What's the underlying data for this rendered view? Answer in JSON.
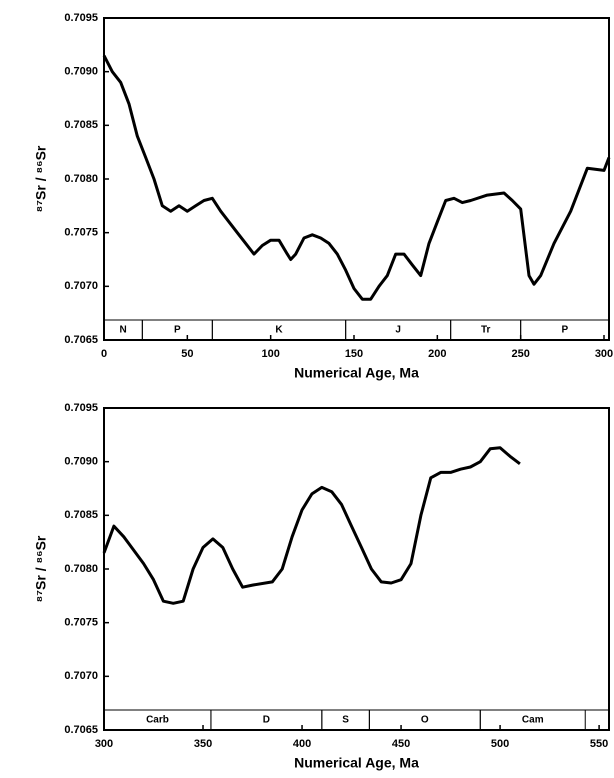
{
  "chart_data": [
    {
      "type": "line",
      "xlabel": "Numerical Age,  Ma",
      "ylabel": "⁸⁷Sr / ⁸⁶Sr",
      "xlim": [
        0,
        303
      ],
      "ylim": [
        0.7065,
        0.7095
      ],
      "xticks": [
        0,
        50,
        100,
        150,
        200,
        250,
        300
      ],
      "yticks": [
        0.7065,
        {
          "value": 0.707,
          "label": "0.7070"
        },
        0.7075,
        {
          "value": 0.708,
          "label": "0.7080"
        },
        0.7085,
        {
          "value": 0.709,
          "label": "0.7090"
        },
        0.7095
      ],
      "color": "#000000",
      "x": [
        0,
        5,
        10,
        15,
        20,
        25,
        30,
        35,
        40,
        45,
        50,
        55,
        60,
        65,
        70,
        75,
        80,
        85,
        90,
        95,
        100,
        105,
        110,
        112,
        115,
        120,
        125,
        130,
        135,
        140,
        145,
        150,
        155,
        160,
        165,
        170,
        175,
        180,
        185,
        190,
        195,
        200,
        205,
        210,
        215,
        220,
        230,
        240,
        245,
        250,
        255,
        258,
        262,
        270,
        280,
        290,
        300,
        303
      ],
      "values": [
        0.70915,
        0.709,
        0.7089,
        0.7087,
        0.7084,
        0.7082,
        0.708,
        0.70775,
        0.7077,
        0.70775,
        0.7077,
        0.70775,
        0.7078,
        0.70782,
        0.7077,
        0.7076,
        0.7075,
        0.7074,
        0.7073,
        0.70738,
        0.70743,
        0.70743,
        0.7073,
        0.70725,
        0.7073,
        0.70745,
        0.70748,
        0.70745,
        0.7074,
        0.7073,
        0.70715,
        0.70698,
        0.70688,
        0.70688,
        0.707,
        0.7071,
        0.7073,
        0.7073,
        0.7072,
        0.7071,
        0.7074,
        0.7076,
        0.7078,
        0.70782,
        0.70778,
        0.7078,
        0.70785,
        0.70787,
        0.7078,
        0.70772,
        0.7071,
        0.70702,
        0.7071,
        0.7074,
        0.7077,
        0.7081,
        0.70808,
        0.7082
      ],
      "periods": [
        {
          "name": "N",
          "start": 0,
          "end": 23
        },
        {
          "name": "P",
          "start": 23,
          "end": 65
        },
        {
          "name": "K",
          "start": 65,
          "end": 145
        },
        {
          "name": "J",
          "start": 145,
          "end": 208
        },
        {
          "name": "Tr",
          "start": 208,
          "end": 250
        },
        {
          "name": "P",
          "start": 250,
          "end": 303
        }
      ]
    },
    {
      "type": "line",
      "xlabel": "Numerical Age,  Ma",
      "ylabel": "⁸⁷Sr / ⁸⁶Sr",
      "xlim": [
        300,
        555
      ],
      "ylim": [
        0.7065,
        0.7095
      ],
      "xticks": [
        300,
        350,
        400,
        450,
        500,
        550
      ],
      "yticks": [
        0.7065,
        {
          "value": 0.707,
          "label": "0.7070"
        },
        0.7075,
        {
          "value": 0.708,
          "label": "0.7080"
        },
        0.7085,
        {
          "value": 0.709,
          "label": "0.7090"
        },
        0.7095
      ],
      "color": "#000000",
      "x": [
        300,
        305,
        310,
        320,
        325,
        330,
        335,
        340,
        345,
        350,
        355,
        360,
        365,
        370,
        375,
        385,
        390,
        395,
        400,
        405,
        410,
        415,
        420,
        425,
        430,
        435,
        440,
        445,
        450,
        455,
        460,
        465,
        470,
        475,
        480,
        485,
        490,
        495,
        500,
        505,
        510
      ],
      "values": [
        0.70815,
        0.7084,
        0.7083,
        0.70805,
        0.7079,
        0.7077,
        0.70768,
        0.7077,
        0.708,
        0.7082,
        0.70828,
        0.7082,
        0.708,
        0.70783,
        0.70785,
        0.70788,
        0.708,
        0.7083,
        0.70855,
        0.7087,
        0.70876,
        0.70872,
        0.7086,
        0.7084,
        0.7082,
        0.708,
        0.70788,
        0.70787,
        0.7079,
        0.70805,
        0.7085,
        0.70885,
        0.7089,
        0.7089,
        0.70893,
        0.70895,
        0.709,
        0.70912,
        0.70913,
        0.70905,
        0.70898
      ],
      "periods": [
        {
          "name": "Carb",
          "start": 300,
          "end": 354
        },
        {
          "name": "D",
          "start": 354,
          "end": 410
        },
        {
          "name": "S",
          "start": 410,
          "end": 434
        },
        {
          "name": "O",
          "start": 434,
          "end": 490
        },
        {
          "name": "Cam",
          "start": 490,
          "end": 543
        }
      ]
    }
  ]
}
